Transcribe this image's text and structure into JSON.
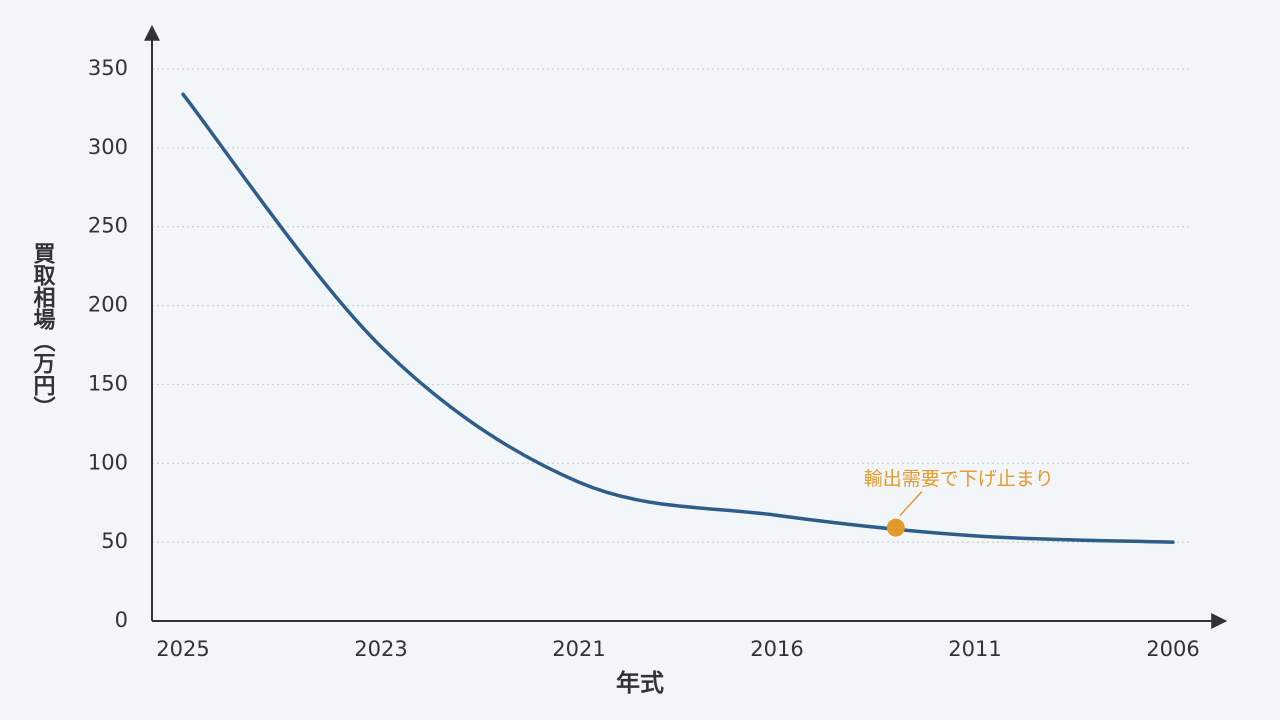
{
  "chart_data": {
    "type": "line",
    "x_label": "年式",
    "y_label": "買取相場（万円）",
    "categories": [
      "2025",
      "2023",
      "2021",
      "2016",
      "2011",
      "2006"
    ],
    "values": [
      334,
      174,
      88,
      67,
      54,
      50
    ],
    "color": "#2f5d8a",
    "ylim": [
      0,
      350
    ],
    "yticks": [
      0,
      50,
      100,
      150,
      200,
      250,
      300,
      350
    ],
    "grid": true,
    "annotation": {
      "text": "輸出需要で下げ止まり",
      "color": "#e39a2d"
    }
  }
}
